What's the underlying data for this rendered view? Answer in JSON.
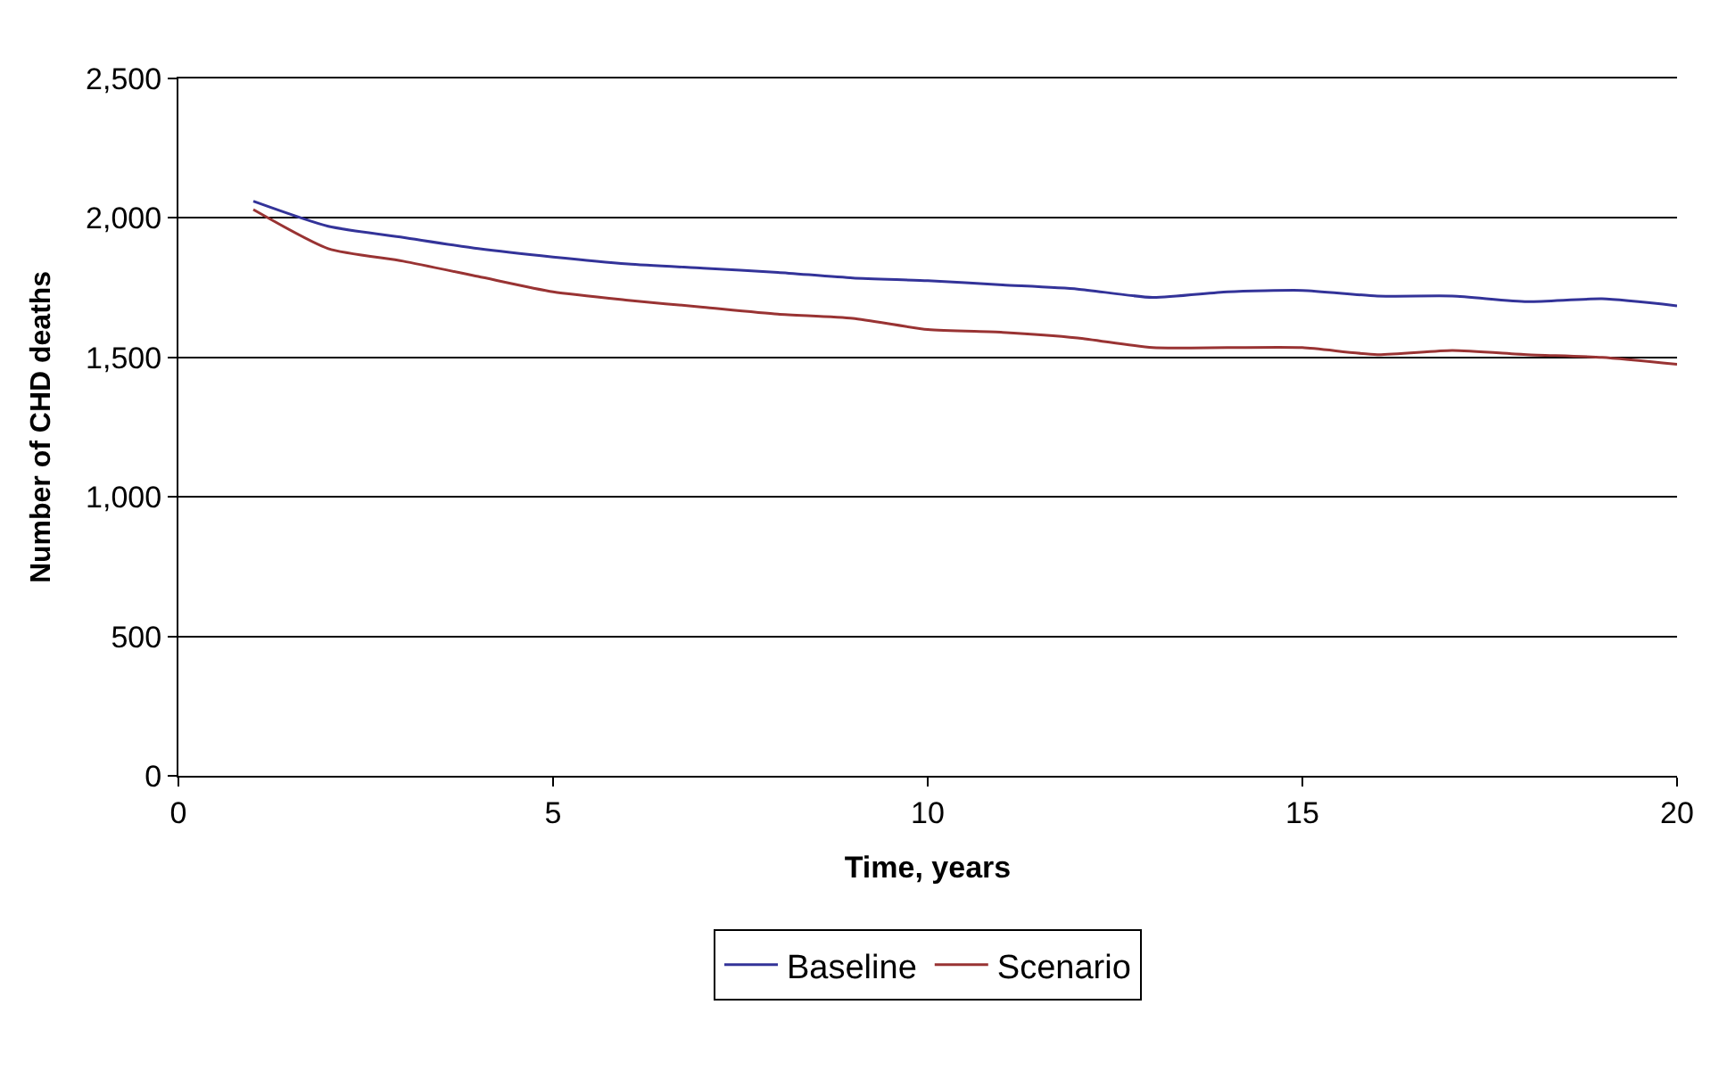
{
  "chart_data": {
    "type": "line",
    "xlabel": "Time, years",
    "ylabel": "Number of CHD deaths",
    "x": [
      1,
      2,
      3,
      4,
      5,
      6,
      7,
      8,
      9,
      10,
      11,
      12,
      13,
      14,
      15,
      16,
      17,
      18,
      19,
      20
    ],
    "series": [
      {
        "name": "Baseline",
        "color": "#333399",
        "values": [
          2060,
          1970,
          1930,
          1890,
          1860,
          1835,
          1820,
          1805,
          1785,
          1775,
          1760,
          1745,
          1715,
          1735,
          1740,
          1720,
          1720,
          1700,
          1710,
          1685
        ]
      },
      {
        "name": "Scenario",
        "color": "#993333",
        "values": [
          2030,
          1890,
          1845,
          1790,
          1735,
          1705,
          1680,
          1655,
          1640,
          1600,
          1590,
          1570,
          1535,
          1535,
          1535,
          1510,
          1525,
          1510,
          1500,
          1475
        ]
      }
    ],
    "xlim": [
      0,
      20
    ],
    "xticks": [
      0,
      5,
      10,
      15,
      20
    ],
    "ylim": [
      0,
      2500
    ],
    "yticks": [
      0,
      {
        "value": 500,
        "label": "500"
      },
      {
        "value": 1000,
        "label": "1,000"
      },
      {
        "value": 1500,
        "label": "1,500"
      },
      {
        "value": 2000,
        "label": "2,000"
      },
      {
        "value": 2500,
        "label": "2,500"
      }
    ],
    "grid": "y",
    "legend": "bottom",
    "marker": "none",
    "line_style": "solid"
  }
}
